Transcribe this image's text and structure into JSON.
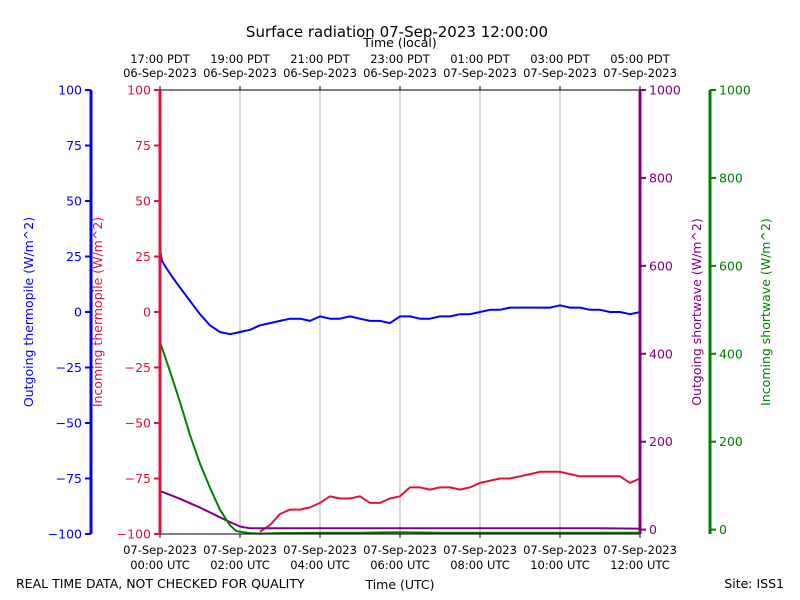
{
  "chart_data": {
    "type": "line",
    "title": "Surface radiation 07-Sep-2023 12:00:00",
    "top_axis_label": "Time (local)",
    "xlabel": "Time (UTC)",
    "footer_left": "REAL TIME DATA, NOT CHECKED FOR QUALITY",
    "footer_right": "Site: ISS1",
    "x_range_hours_utc": [
      0,
      12
    ],
    "grid": "vertical",
    "bottom_ticks": [
      {
        "x": 0,
        "line1": "07-Sep-2023",
        "line2": "00:00 UTC"
      },
      {
        "x": 2,
        "line1": "07-Sep-2023",
        "line2": "02:00 UTC"
      },
      {
        "x": 4,
        "line1": "07-Sep-2023",
        "line2": "04:00 UTC"
      },
      {
        "x": 6,
        "line1": "07-Sep-2023",
        "line2": "06:00 UTC"
      },
      {
        "x": 8,
        "line1": "07-Sep-2023",
        "line2": "08:00 UTC"
      },
      {
        "x": 10,
        "line1": "07-Sep-2023",
        "line2": "10:00 UTC"
      },
      {
        "x": 12,
        "line1": "07-Sep-2023",
        "line2": "12:00 UTC"
      }
    ],
    "top_ticks": [
      {
        "x": 0,
        "line1": "17:00 PDT",
        "line2": "06-Sep-2023"
      },
      {
        "x": 2,
        "line1": "19:00 PDT",
        "line2": "06-Sep-2023"
      },
      {
        "x": 4,
        "line1": "21:00 PDT",
        "line2": "06-Sep-2023"
      },
      {
        "x": 6,
        "line1": "23:00 PDT",
        "line2": "06-Sep-2023"
      },
      {
        "x": 8,
        "line1": "01:00 PDT",
        "line2": "07-Sep-2023"
      },
      {
        "x": 10,
        "line1": "03:00 PDT",
        "line2": "07-Sep-2023"
      },
      {
        "x": 12,
        "line1": "05:00 PDT",
        "line2": "07-Sep-2023"
      }
    ],
    "axes": [
      {
        "id": "outgoing_thermopile",
        "label": "Outgoing thermopile (W/m^2)",
        "color": "#0000ff",
        "side": "left-outer",
        "ylim": [
          -100,
          100
        ],
        "ticks": [
          -100,
          -75,
          -50,
          -25,
          0,
          25,
          50,
          75,
          100
        ]
      },
      {
        "id": "incoming_thermopile",
        "label": "Incoming thermopile (W/m^2)",
        "color": "#dc143c",
        "side": "left-inner",
        "ylim": [
          -100,
          100
        ],
        "ticks": [
          -100,
          -75,
          -50,
          -25,
          0,
          25,
          50,
          75,
          100
        ]
      },
      {
        "id": "outgoing_shortwave",
        "label": "Outgoing shortwave (W/m^2)",
        "color": "#800080",
        "side": "right-inner",
        "ylim": [
          -10,
          1000
        ],
        "ticks": [
          0,
          200,
          400,
          600,
          800,
          1000
        ]
      },
      {
        "id": "incoming_shortwave",
        "label": "Incoming shortwave (W/m^2)",
        "color": "#008000",
        "side": "right-outer",
        "ylim": [
          -10,
          1000
        ],
        "ticks": [
          0,
          200,
          400,
          600,
          800,
          1000
        ]
      }
    ],
    "series": [
      {
        "axis": "outgoing_thermopile",
        "color": "#0000ff",
        "x": [
          0,
          0.05,
          0.15,
          0.3,
          0.5,
          0.75,
          1.0,
          1.25,
          1.5,
          1.75,
          2.0,
          2.25,
          2.5,
          2.75,
          3.0,
          3.25,
          3.5,
          3.75,
          4.0,
          4.25,
          4.5,
          4.75,
          5.0,
          5.25,
          5.5,
          5.75,
          6.0,
          6.25,
          6.5,
          6.75,
          7.0,
          7.25,
          7.5,
          7.75,
          8.0,
          8.25,
          8.5,
          8.75,
          9.0,
          9.25,
          9.5,
          9.75,
          10.0,
          10.25,
          10.5,
          10.75,
          11.0,
          11.25,
          11.5,
          11.75,
          12.0
        ],
        "y": [
          28,
          23,
          20,
          16,
          11,
          5,
          -1,
          -6,
          -9,
          -10,
          -9,
          -8,
          -6,
          -5,
          -4,
          -3,
          -3,
          -4,
          -2,
          -3,
          -3,
          -2,
          -3,
          -4,
          -4,
          -5,
          -2,
          -2,
          -3,
          -3,
          -2,
          -2,
          -1,
          -1,
          0,
          1,
          1,
          2,
          2,
          2,
          2,
          2,
          3,
          2,
          2,
          1,
          1,
          0,
          0,
          -1,
          0
        ]
      },
      {
        "axis": "incoming_thermopile",
        "color": "#dc143c",
        "x": [
          2.5,
          2.75,
          3.0,
          3.25,
          3.5,
          3.75,
          4.0,
          4.25,
          4.5,
          4.75,
          5.0,
          5.25,
          5.5,
          5.75,
          6.0,
          6.25,
          6.5,
          6.75,
          7.0,
          7.25,
          7.5,
          7.75,
          8.0,
          8.25,
          8.5,
          8.75,
          9.0,
          9.25,
          9.5,
          9.75,
          10.0,
          10.25,
          10.5,
          10.75,
          11.0,
          11.25,
          11.5,
          11.75,
          12.0
        ],
        "y": [
          -99,
          -96,
          -91,
          -89,
          -89,
          -88,
          -86,
          -83,
          -84,
          -84,
          -83,
          -86,
          -86,
          -84,
          -83,
          -79,
          -79,
          -80,
          -79,
          -79,
          -80,
          -79,
          -77,
          -76,
          -75,
          -75,
          -74,
          -73,
          -72,
          -72,
          -72,
          -73,
          -74,
          -74,
          -74,
          -74,
          -74,
          -77,
          -75
        ]
      },
      {
        "axis": "outgoing_shortwave",
        "color": "#800080",
        "x": [
          0,
          0.5,
          1.0,
          1.5,
          1.75,
          2.0,
          2.25,
          2.5,
          3.0,
          4.0,
          5.0,
          6.0,
          7.0,
          8.0,
          9.0,
          10.0,
          11.0,
          12.0
        ],
        "y": [
          88,
          70,
          50,
          28,
          17,
          7,
          3,
          3,
          3,
          3,
          3,
          3,
          3,
          3,
          3,
          3,
          3,
          2
        ]
      },
      {
        "axis": "incoming_shortwave",
        "color": "#008000",
        "x": [
          0,
          0.25,
          0.5,
          0.75,
          1.0,
          1.25,
          1.5,
          1.75,
          1.9,
          2.0,
          2.25,
          2.5,
          3.0,
          4.0,
          5.0,
          6.0,
          7.0,
          8.0,
          9.0,
          10.0,
          11.0,
          12.0
        ],
        "y": [
          427,
          360,
          290,
          215,
          150,
          95,
          45,
          10,
          -3,
          -5,
          -8,
          -9,
          -8,
          -7,
          -7,
          -6,
          -7,
          -7,
          -7,
          -7,
          -7,
          -7
        ]
      }
    ]
  }
}
